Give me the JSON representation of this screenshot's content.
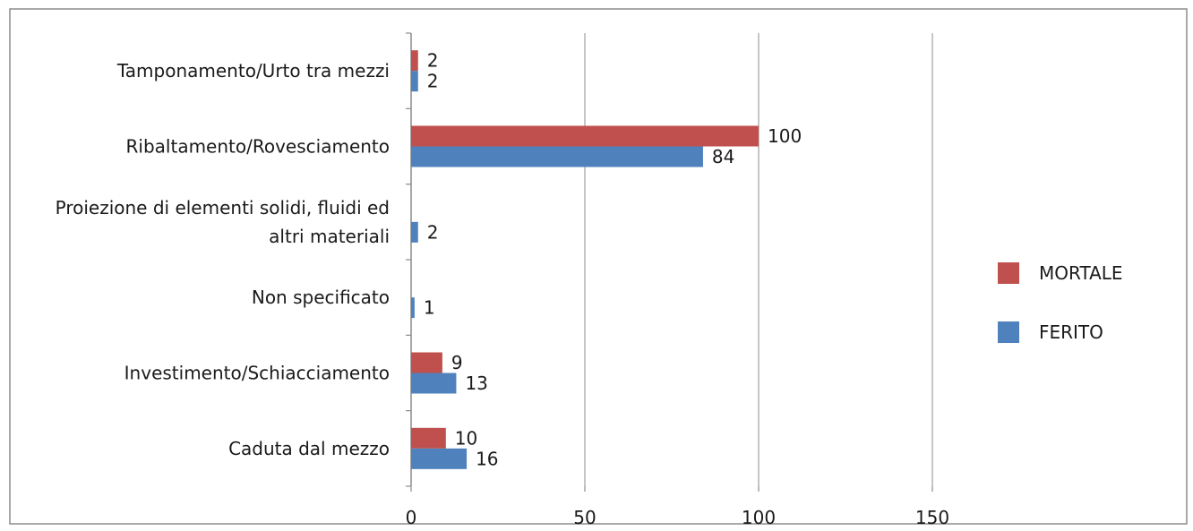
{
  "chart_data": {
    "type": "bar",
    "orientation": "horizontal",
    "categories": [
      "Tamponamento/Urto tra mezzi",
      "Ribaltamento/Rovesciamento",
      "Proiezione di elementi solidi, fluidi ed altri materiali",
      "Non specificato",
      "Investimento/Schiacciamento",
      "Caduta dal mezzo"
    ],
    "category_lines": [
      [
        "Tamponamento/Urto tra mezzi"
      ],
      [
        "Ribaltamento/Rovesciamento"
      ],
      [
        "Proiezione di elementi solidi, fluidi ed",
        "altri materiali"
      ],
      [
        "Non specificato"
      ],
      [
        "Investimento/Schiacciamento"
      ],
      [
        "Caduta dal mezzo"
      ]
    ],
    "series": [
      {
        "name": "MORTALE",
        "color": "#c0504d",
        "values": [
          2,
          100,
          null,
          null,
          9,
          10
        ]
      },
      {
        "name": "FERITO",
        "color": "#4f81bd",
        "values": [
          2,
          84,
          2,
          1,
          13,
          16
        ]
      }
    ],
    "xlim": [
      0,
      150
    ],
    "xticks": [
      0,
      50,
      100,
      150
    ],
    "grid": true,
    "legend_position": "right",
    "title": "",
    "xlabel": "",
    "ylabel": ""
  }
}
